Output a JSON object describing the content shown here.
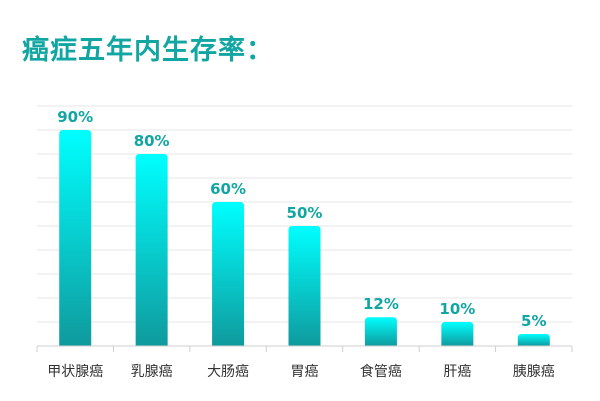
{
  "chart_data": {
    "type": "bar",
    "title": "癌症五年内生存率：",
    "categories": [
      "甲状腺癌",
      "乳腺癌",
      "大肠癌",
      "胃癌",
      "食管癌",
      "肝癌",
      "胰腺癌"
    ],
    "values": [
      90,
      80,
      60,
      50,
      12,
      10,
      5
    ],
    "value_labels": [
      "90%",
      "80%",
      "60%",
      "50%",
      "12%",
      "10%",
      "5%"
    ],
    "ylim": [
      0,
      100
    ],
    "xlabel": "",
    "ylabel": "",
    "grid": true,
    "legend": "none"
  },
  "colors": {
    "title": "#12a6a3",
    "value_label": "#12a6a3",
    "bar_top": "#00ffff",
    "bar_bottom": "#0f9a9d",
    "grid": "#e4e4e4",
    "axis": "#cfcfcf",
    "category_label": "#333333"
  }
}
